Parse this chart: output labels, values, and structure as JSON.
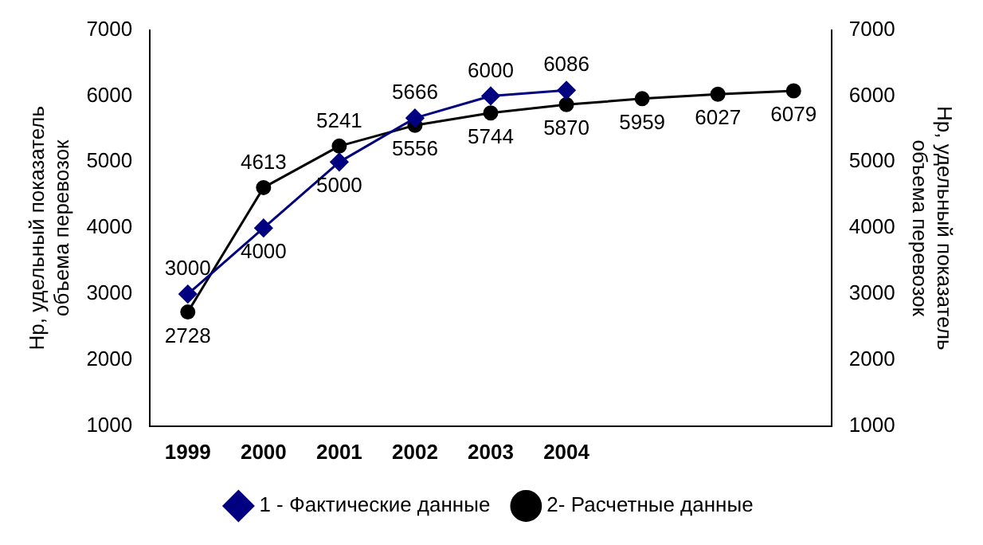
{
  "chart_data": {
    "type": "line",
    "ylabel": "Нр, удельный показатель объема перевозок",
    "y2label": "Нр, удельный показатель объема перевозок",
    "categories": [
      "1999",
      "2000",
      "2001",
      "2002",
      "2003",
      "2004",
      null,
      null,
      null
    ],
    "series": [
      {
        "name": "1 - Фактические данные",
        "color": "#000080",
        "marker": "diamond",
        "values": [
          3000,
          4000,
          5000,
          5666,
          6000,
          6086,
          null,
          null,
          null
        ]
      },
      {
        "name": "2- Расчетные данные",
        "color": "#000000",
        "marker": "circle",
        "values": [
          2728,
          4613,
          5241,
          5556,
          5744,
          5870,
          5959,
          6027,
          6079
        ]
      }
    ],
    "ylim": [
      1000,
      7000
    ],
    "yticks": [
      1000,
      2000,
      3000,
      4000,
      5000,
      6000,
      7000
    ],
    "y2lim": [
      1000,
      7000
    ],
    "y2ticks": [
      1000,
      2000,
      3000,
      4000,
      5000,
      6000,
      7000
    ],
    "grid": false,
    "legend": "bottom",
    "data_labels": true,
    "line_style": "solid"
  }
}
